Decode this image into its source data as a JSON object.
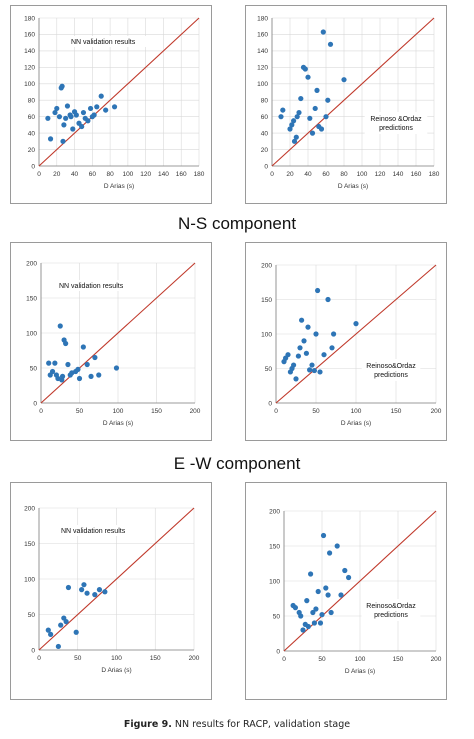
{
  "sections": {
    "ns_label": "N-S component",
    "ew_label": "E -W component"
  },
  "caption": {
    "label": "Figure 9.",
    "text": "NN results for RACP, validation stage"
  },
  "colors": {
    "points": "#2e75b6",
    "identity_line": "#c0392b",
    "gridline": "#d9d9d9",
    "axis": "#808080"
  },
  "chart_data": [
    {
      "type": "scatter",
      "title": "",
      "annotation": "NN  validation results",
      "xlabel": "D Arias (s)",
      "ylabel": "",
      "xlim": [
        0,
        180
      ],
      "ylim": [
        0,
        180
      ],
      "xticks": [
        0,
        20,
        40,
        60,
        80,
        100,
        120,
        140,
        160,
        180
      ],
      "yticks": [
        0,
        20,
        40,
        60,
        80,
        100,
        120,
        140,
        160,
        180
      ],
      "grid": true,
      "identity_line": true,
      "points": [
        [
          10,
          58
        ],
        [
          13,
          33
        ],
        [
          18,
          65
        ],
        [
          20,
          70
        ],
        [
          23,
          60
        ],
        [
          25,
          95
        ],
        [
          26,
          97
        ],
        [
          27,
          30
        ],
        [
          28,
          50
        ],
        [
          30,
          58
        ],
        [
          32,
          73
        ],
        [
          35,
          62
        ],
        [
          36,
          60
        ],
        [
          38,
          45
        ],
        [
          40,
          66
        ],
        [
          42,
          62
        ],
        [
          45,
          52
        ],
        [
          48,
          48
        ],
        [
          50,
          65
        ],
        [
          52,
          58
        ],
        [
          55,
          55
        ],
        [
          58,
          70
        ],
        [
          60,
          60
        ],
        [
          62,
          62
        ],
        [
          65,
          72
        ],
        [
          70,
          85
        ],
        [
          75,
          68
        ],
        [
          85,
          72
        ]
      ]
    },
    {
      "type": "scatter",
      "title": "",
      "annotation": "Reinoso &Ordaz predictions",
      "xlabel": "D Arias (s)",
      "ylabel": "",
      "xlim": [
        0,
        180
      ],
      "ylim": [
        0,
        180
      ],
      "xticks": [
        0,
        20,
        40,
        60,
        80,
        100,
        120,
        140,
        160,
        180
      ],
      "yticks": [
        0,
        20,
        40,
        60,
        80,
        100,
        120,
        140,
        160,
        180
      ],
      "grid": true,
      "identity_line": true,
      "points": [
        [
          10,
          60
        ],
        [
          12,
          68
        ],
        [
          20,
          45
        ],
        [
          22,
          50
        ],
        [
          24,
          55
        ],
        [
          25,
          30
        ],
        [
          27,
          35
        ],
        [
          28,
          60
        ],
        [
          30,
          65
        ],
        [
          32,
          82
        ],
        [
          35,
          120
        ],
        [
          37,
          118
        ],
        [
          40,
          108
        ],
        [
          42,
          58
        ],
        [
          45,
          40
        ],
        [
          48,
          70
        ],
        [
          50,
          92
        ],
        [
          52,
          48
        ],
        [
          55,
          45
        ],
        [
          57,
          163
        ],
        [
          60,
          60
        ],
        [
          62,
          80
        ],
        [
          65,
          148
        ],
        [
          80,
          105
        ]
      ]
    },
    {
      "type": "scatter",
      "title": "",
      "annotation": "NN validation results",
      "xlabel": "D Arias (s)",
      "ylabel": "",
      "xlim": [
        0,
        200
      ],
      "ylim": [
        0,
        200
      ],
      "xticks": [
        0,
        50,
        100,
        150,
        200
      ],
      "yticks": [
        0,
        50,
        100,
        150,
        200
      ],
      "grid": true,
      "identity_line": true,
      "points": [
        [
          10,
          57
        ],
        [
          12,
          40
        ],
        [
          15,
          45
        ],
        [
          18,
          57
        ],
        [
          20,
          40
        ],
        [
          22,
          35
        ],
        [
          25,
          110
        ],
        [
          27,
          33
        ],
        [
          28,
          38
        ],
        [
          30,
          90
        ],
        [
          32,
          85
        ],
        [
          35,
          55
        ],
        [
          38,
          40
        ],
        [
          40,
          43
        ],
        [
          45,
          45
        ],
        [
          48,
          48
        ],
        [
          50,
          35
        ],
        [
          55,
          80
        ],
        [
          60,
          55
        ],
        [
          65,
          38
        ],
        [
          70,
          65
        ],
        [
          75,
          40
        ],
        [
          98,
          50
        ]
      ]
    },
    {
      "type": "scatter",
      "title": "",
      "annotation": "Reinoso&Ordaz predictions",
      "xlabel": "D Arias (s)",
      "ylabel": "",
      "xlim": [
        0,
        200
      ],
      "ylim": [
        0,
        200
      ],
      "xticks": [
        0,
        50,
        100,
        150,
        200
      ],
      "yticks": [
        0,
        50,
        100,
        150,
        200
      ],
      "grid": true,
      "identity_line": true,
      "points": [
        [
          10,
          60
        ],
        [
          12,
          65
        ],
        [
          15,
          70
        ],
        [
          18,
          45
        ],
        [
          20,
          50
        ],
        [
          22,
          55
        ],
        [
          25,
          35
        ],
        [
          28,
          68
        ],
        [
          30,
          80
        ],
        [
          32,
          120
        ],
        [
          35,
          90
        ],
        [
          38,
          72
        ],
        [
          40,
          110
        ],
        [
          42,
          48
        ],
        [
          45,
          55
        ],
        [
          48,
          47
        ],
        [
          50,
          100
        ],
        [
          52,
          163
        ],
        [
          55,
          45
        ],
        [
          60,
          70
        ],
        [
          65,
          150
        ],
        [
          70,
          80
        ],
        [
          72,
          100
        ],
        [
          100,
          115
        ]
      ]
    },
    {
      "type": "scatter",
      "title": "",
      "annotation": "NN  validation results",
      "xlabel": "D Arias (s)",
      "ylabel": "",
      "xlim": [
        0,
        200
      ],
      "ylim": [
        0,
        200
      ],
      "xticks": [
        0,
        50,
        100,
        150,
        200
      ],
      "yticks": [
        0,
        50,
        100,
        150,
        200
      ],
      "grid": true,
      "identity_line": true,
      "points": [
        [
          12,
          28
        ],
        [
          15,
          22
        ],
        [
          25,
          5
        ],
        [
          28,
          35
        ],
        [
          32,
          45
        ],
        [
          35,
          40
        ],
        [
          38,
          88
        ],
        [
          48,
          25
        ],
        [
          55,
          85
        ],
        [
          58,
          92
        ],
        [
          62,
          80
        ],
        [
          72,
          78
        ],
        [
          78,
          85
        ],
        [
          85,
          82
        ]
      ]
    },
    {
      "type": "scatter",
      "title": "",
      "annotation": "Reinoso&Ordaz predictions",
      "xlabel": "D Arias (s)",
      "ylabel": "",
      "xlim": [
        0,
        200
      ],
      "ylim": [
        0,
        200
      ],
      "xticks": [
        0,
        50,
        100,
        150,
        200
      ],
      "yticks": [
        0,
        50,
        100,
        150,
        200
      ],
      "grid": true,
      "identity_line": true,
      "points": [
        [
          12,
          65
        ],
        [
          15,
          62
        ],
        [
          20,
          55
        ],
        [
          22,
          50
        ],
        [
          25,
          30
        ],
        [
          28,
          38
        ],
        [
          30,
          72
        ],
        [
          32,
          35
        ],
        [
          35,
          110
        ],
        [
          38,
          55
        ],
        [
          40,
          40
        ],
        [
          42,
          60
        ],
        [
          45,
          85
        ],
        [
          48,
          40
        ],
        [
          50,
          52
        ],
        [
          52,
          165
        ],
        [
          55,
          90
        ],
        [
          58,
          80
        ],
        [
          60,
          140
        ],
        [
          62,
          55
        ],
        [
          70,
          150
        ],
        [
          75,
          80
        ],
        [
          80,
          115
        ],
        [
          85,
          105
        ]
      ]
    }
  ]
}
